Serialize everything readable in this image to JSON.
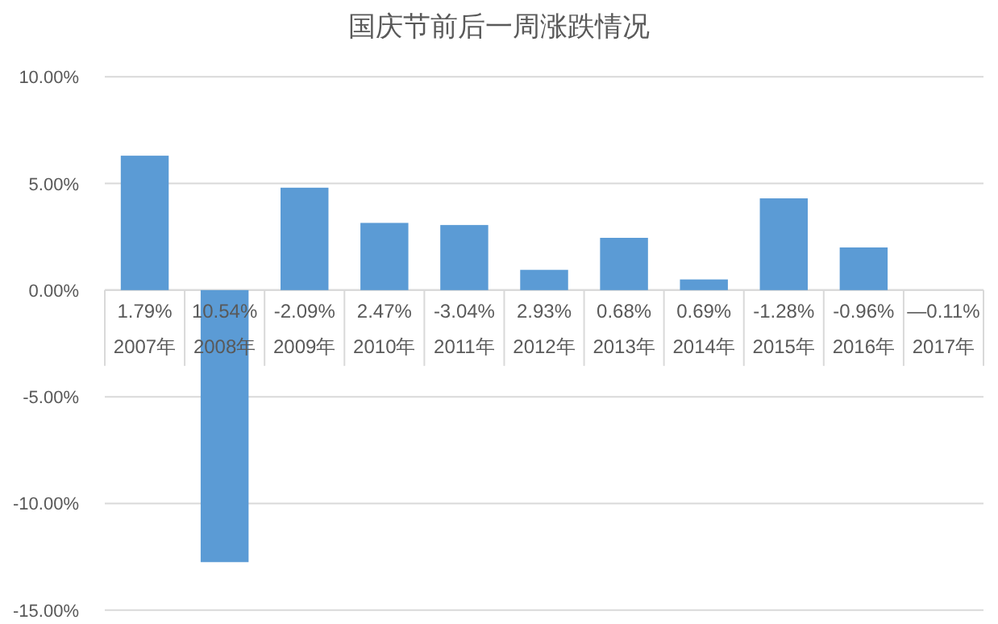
{
  "chart_data": {
    "type": "bar",
    "title": "国庆节前后一周涨跌情况",
    "categories": [
      "2007年",
      "2008年",
      "2009年",
      "2010年",
      "2011年",
      "2012年",
      "2013年",
      "2014年",
      "2015年",
      "2016年",
      "2017年"
    ],
    "values": [
      6.3,
      -12.75,
      4.8,
      3.15,
      3.05,
      0.95,
      2.45,
      0.5,
      4.3,
      2.0,
      null
    ],
    "color": "#5b9bd5",
    "ylim": [
      -15,
      10
    ],
    "yticks": [
      {
        "value": -15,
        "label": "-15.00%"
      },
      {
        "value": -10,
        "label": "-10.00%"
      },
      {
        "value": -5,
        "label": "-5.00%"
      },
      {
        "value": 0,
        "label": "0.00%"
      },
      {
        "value": 5,
        "label": "5.00%"
      },
      {
        "value": 10,
        "label": "10.00%"
      }
    ],
    "grid": "y",
    "annotations": [
      "1.79%",
      "10.54%",
      "-2.09%",
      "2.47%",
      "-3.04%",
      "2.93%",
      "0.68%",
      "0.69%",
      "-1.28%",
      "-0.96%",
      "—0.11%"
    ]
  }
}
